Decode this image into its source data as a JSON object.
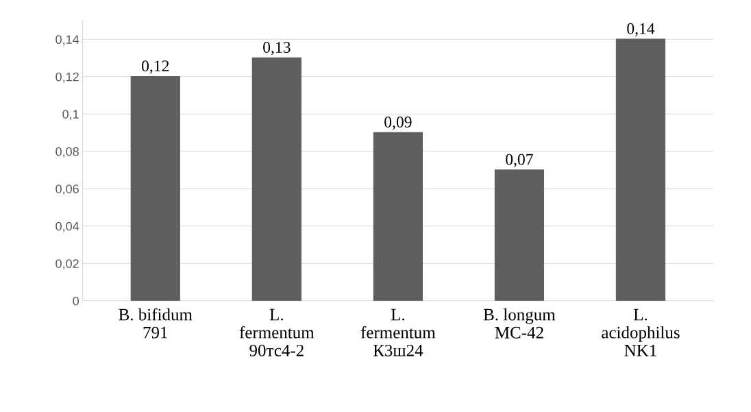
{
  "chart_data": {
    "type": "bar",
    "categories": [
      "B. bifidum\n791",
      "L.\nfermentum\n90тс4-2",
      "L.\nfermentum\nК3ш24",
      "B. longum\nMC-42",
      "L.\nacidophilus\nNK1"
    ],
    "values": [
      0.12,
      0.13,
      0.09,
      0.07,
      0.14
    ],
    "value_labels": [
      "0,12",
      "0,13",
      "0,09",
      "0,07",
      "0,14"
    ],
    "color": "#5f5f5f",
    "ylim": [
      0,
      0.15
    ],
    "yticks": [
      {
        "value": 0,
        "label": "0"
      },
      {
        "value": 0.02,
        "label": "0,02"
      },
      {
        "value": 0.04,
        "label": "0,04"
      },
      {
        "value": 0.06,
        "label": "0,06"
      },
      {
        "value": 0.08,
        "label": "0,08"
      },
      {
        "value": 0.1,
        "label": "0,1"
      },
      {
        "value": 0.12,
        "label": "0,12"
      },
      {
        "value": 0.14,
        "label": "0,14"
      }
    ],
    "grid": "y",
    "legend": false
  }
}
